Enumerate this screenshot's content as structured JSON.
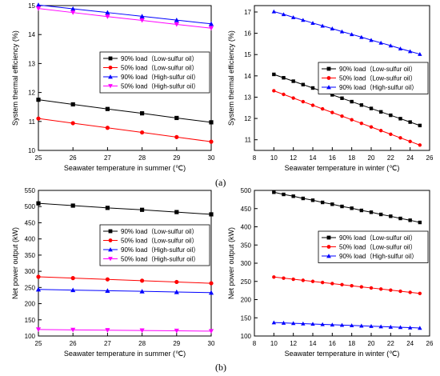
{
  "panel_labels": {
    "a": "(a)",
    "b": "(b)"
  },
  "colors": {
    "90_low": "#000000",
    "50_low": "#ff0000",
    "90_high": "#0000ff",
    "50_high": "#ff00ff"
  },
  "chart_data": [
    {
      "id": "a_summer",
      "type": "line",
      "xlabel": "Seawater temperature in summer (℃)",
      "ylabel": "System thermal efficiency (%)",
      "xlim": [
        25,
        30
      ],
      "ylim": [
        10,
        15
      ],
      "xticks": [
        25,
        26,
        27,
        28,
        29,
        30
      ],
      "yticks": [
        10,
        11,
        12,
        13,
        14,
        15
      ],
      "legend_position": "right-middle",
      "x": [
        25,
        26,
        27,
        28,
        29,
        30
      ],
      "series": [
        {
          "name": "90% load（Low-sulfur oil）",
          "color": "#000000",
          "marker": "square",
          "values": [
            11.75,
            11.59,
            11.43,
            11.28,
            11.12,
            10.97
          ]
        },
        {
          "name": "50% load（Low-sulfur oil）",
          "color": "#ff0000",
          "marker": "circle",
          "values": [
            11.1,
            10.94,
            10.78,
            10.62,
            10.46,
            10.3
          ]
        },
        {
          "name": "90% load（High-sulfur oil）",
          "color": "#0000ff",
          "marker": "triangle-up",
          "values": [
            15.02,
            14.89,
            14.76,
            14.63,
            14.5,
            14.37
          ]
        },
        {
          "name": "50% load（High-sulfur oil）",
          "color": "#ff00ff",
          "marker": "triangle-down",
          "values": [
            14.9,
            14.76,
            14.62,
            14.49,
            14.35,
            14.22
          ]
        }
      ]
    },
    {
      "id": "a_winter",
      "type": "line",
      "xlabel": "Seawater temperature in winter (℃)",
      "ylabel": "System thermal efficiency (%)",
      "xlim": [
        8,
        26
      ],
      "ylim": [
        10.5,
        17.3
      ],
      "xticks": [
        8,
        10,
        12,
        14,
        16,
        18,
        20,
        22,
        24,
        26
      ],
      "yticks": [
        11,
        12,
        13,
        14,
        15,
        16,
        17
      ],
      "legend_position": "right-middle",
      "x": [
        10,
        11,
        12,
        13,
        14,
        15,
        16,
        17,
        18,
        19,
        20,
        21,
        22,
        23,
        24,
        25
      ],
      "series": [
        {
          "name": "90% load（Low-sulfur oil）",
          "color": "#000000",
          "marker": "square",
          "values": [
            14.07,
            13.91,
            13.75,
            13.59,
            13.43,
            13.27,
            13.11,
            12.95,
            12.79,
            12.63,
            12.47,
            12.31,
            12.15,
            11.99,
            11.83,
            11.67
          ]
        },
        {
          "name": "50% load（Low-sulfur oil）",
          "color": "#ff0000",
          "marker": "circle",
          "values": [
            13.3,
            13.13,
            12.96,
            12.79,
            12.62,
            12.45,
            12.28,
            12.11,
            11.94,
            11.77,
            11.6,
            11.43,
            11.26,
            11.09,
            10.92,
            10.75
          ]
        },
        {
          "name": "90% load（High-sulfur oil）",
          "color": "#0000ff",
          "marker": "triangle-up",
          "values": [
            17.02,
            16.89,
            16.75,
            16.62,
            16.48,
            16.35,
            16.22,
            16.08,
            15.95,
            15.82,
            15.68,
            15.55,
            15.42,
            15.28,
            15.15,
            15.02
          ]
        }
      ]
    },
    {
      "id": "b_summer",
      "type": "line",
      "xlabel": "Seawater temperature in summer (℃)",
      "ylabel": "Net power output (kW)",
      "xlim": [
        25,
        30
      ],
      "ylim": [
        100,
        550
      ],
      "xticks": [
        25,
        26,
        27,
        28,
        29,
        30
      ],
      "yticks": [
        100,
        150,
        200,
        250,
        300,
        350,
        400,
        450,
        500,
        550
      ],
      "legend_position": "right-upper",
      "x": [
        25,
        26,
        27,
        28,
        29,
        30
      ],
      "series": [
        {
          "name": "90% load（Low-sulfur oil）",
          "color": "#000000",
          "marker": "square",
          "values": [
            510,
            503,
            496,
            490,
            483,
            476
          ]
        },
        {
          "name": "50% load（Low-sulfur oil）",
          "color": "#ff0000",
          "marker": "circle",
          "values": [
            283,
            279,
            275,
            271,
            267,
            263
          ]
        },
        {
          "name": "90% load（High-sulfur oil）",
          "color": "#0000ff",
          "marker": "triangle-up",
          "values": [
            244,
            242,
            240,
            238,
            236,
            234
          ]
        },
        {
          "name": "50% load（High-sulfur oil）",
          "color": "#ff00ff",
          "marker": "triangle-down",
          "values": [
            120,
            119,
            118,
            117,
            116,
            115
          ]
        }
      ]
    },
    {
      "id": "b_winter",
      "type": "line",
      "xlabel": "Seawater temperature in winter (℃)",
      "ylabel": "Net power output (kW)",
      "xlim": [
        8,
        26
      ],
      "ylim": [
        100,
        500
      ],
      "xticks": [
        8,
        10,
        12,
        14,
        16,
        18,
        20,
        22,
        24,
        26
      ],
      "yticks": [
        100,
        150,
        200,
        250,
        300,
        350,
        400,
        450,
        500
      ],
      "legend_position": "right-upper",
      "x": [
        10,
        11,
        12,
        13,
        14,
        15,
        16,
        17,
        18,
        19,
        20,
        21,
        22,
        23,
        24,
        25
      ],
      "series": [
        {
          "name": "90% load（Low-sulfur oil）",
          "color": "#000000",
          "marker": "square",
          "values": [
            495,
            489,
            484,
            478,
            473,
            467,
            462,
            456,
            451,
            445,
            440,
            434,
            429,
            423,
            418,
            412
          ]
        },
        {
          "name": "50% load（Low-sulfur oil）",
          "color": "#ff0000",
          "marker": "circle",
          "values": [
            262,
            259,
            256,
            253,
            250,
            247,
            244,
            241,
            238,
            235,
            232,
            229,
            226,
            223,
            220,
            217
          ]
        },
        {
          "name": "90% load（High-sulfur oil）",
          "color": "#0000ff",
          "marker": "triangle-up",
          "values": [
            137,
            136,
            135,
            134,
            133,
            132,
            131,
            130,
            129,
            128,
            127,
            126,
            125,
            124,
            123,
            122
          ]
        }
      ]
    }
  ]
}
